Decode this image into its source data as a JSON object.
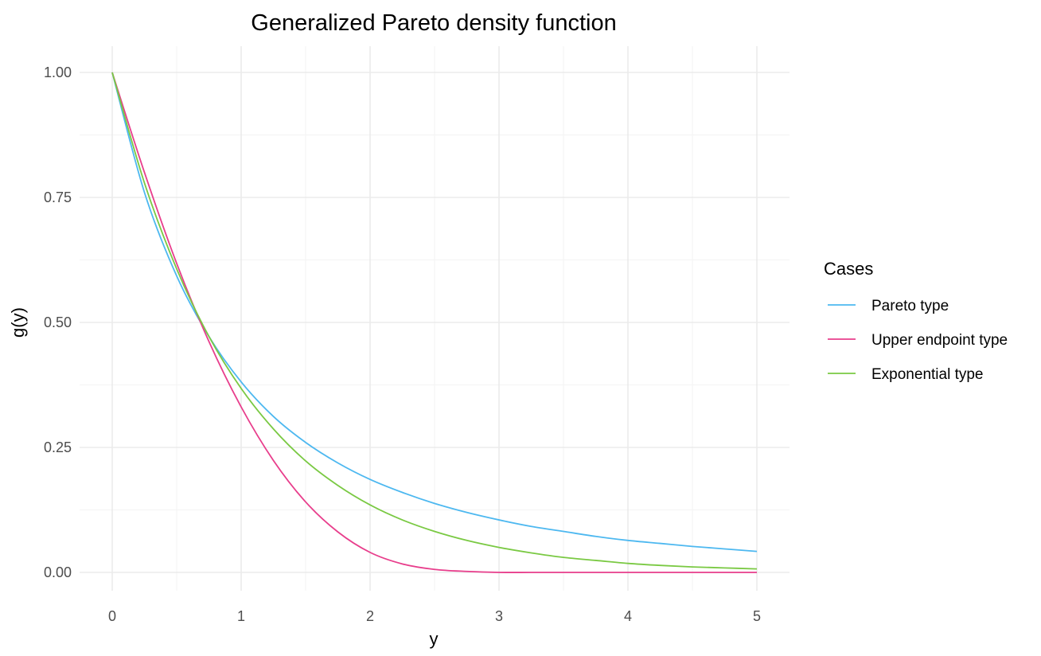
{
  "chart_data": {
    "type": "line",
    "title": "Generalized Pareto density function",
    "xlabel": "y",
    "ylabel": "g(y)",
    "xlim": [
      0,
      5
    ],
    "ylim": [
      0,
      1
    ],
    "x_ticks": [
      "0",
      "1",
      "2",
      "3",
      "4",
      "5"
    ],
    "y_ticks": [
      "0.00",
      "0.25",
      "0.50",
      "0.75",
      "1.00"
    ],
    "grid": true,
    "legend": {
      "title": "Cases",
      "position": "right"
    },
    "x": [
      0,
      0.25,
      0.5,
      0.75,
      1,
      1.25,
      1.5,
      1.75,
      2,
      2.25,
      2.5,
      2.75,
      3,
      3.25,
      3.5,
      3.75,
      4,
      4.25,
      4.5,
      4.75,
      5
    ],
    "series": [
      {
        "name": "Pareto type",
        "color": "#4db8f0",
        "values": [
          1.0,
          0.76,
          0.593,
          0.472,
          0.381,
          0.312,
          0.26,
          0.219,
          0.186,
          0.16,
          0.138,
          0.12,
          0.105,
          0.092,
          0.082,
          0.072,
          0.064,
          0.058,
          0.052,
          0.047,
          0.042
        ]
      },
      {
        "name": "Upper endpoint type",
        "color": "#e83e8c",
        "values": [
          1.0,
          0.8,
          0.618,
          0.462,
          0.331,
          0.224,
          0.141,
          0.081,
          0.04,
          0.017,
          0.006,
          0.002,
          0.0,
          0.0,
          0.0,
          0.0,
          0.0,
          0.0,
          0.0,
          0.0,
          0.0
        ]
      },
      {
        "name": "Exponential type",
        "color": "#7ac943",
        "values": [
          1.0,
          0.779,
          0.607,
          0.472,
          0.368,
          0.287,
          0.223,
          0.174,
          0.135,
          0.105,
          0.082,
          0.064,
          0.05,
          0.039,
          0.03,
          0.024,
          0.018,
          0.014,
          0.011,
          0.009,
          0.007
        ]
      }
    ]
  }
}
